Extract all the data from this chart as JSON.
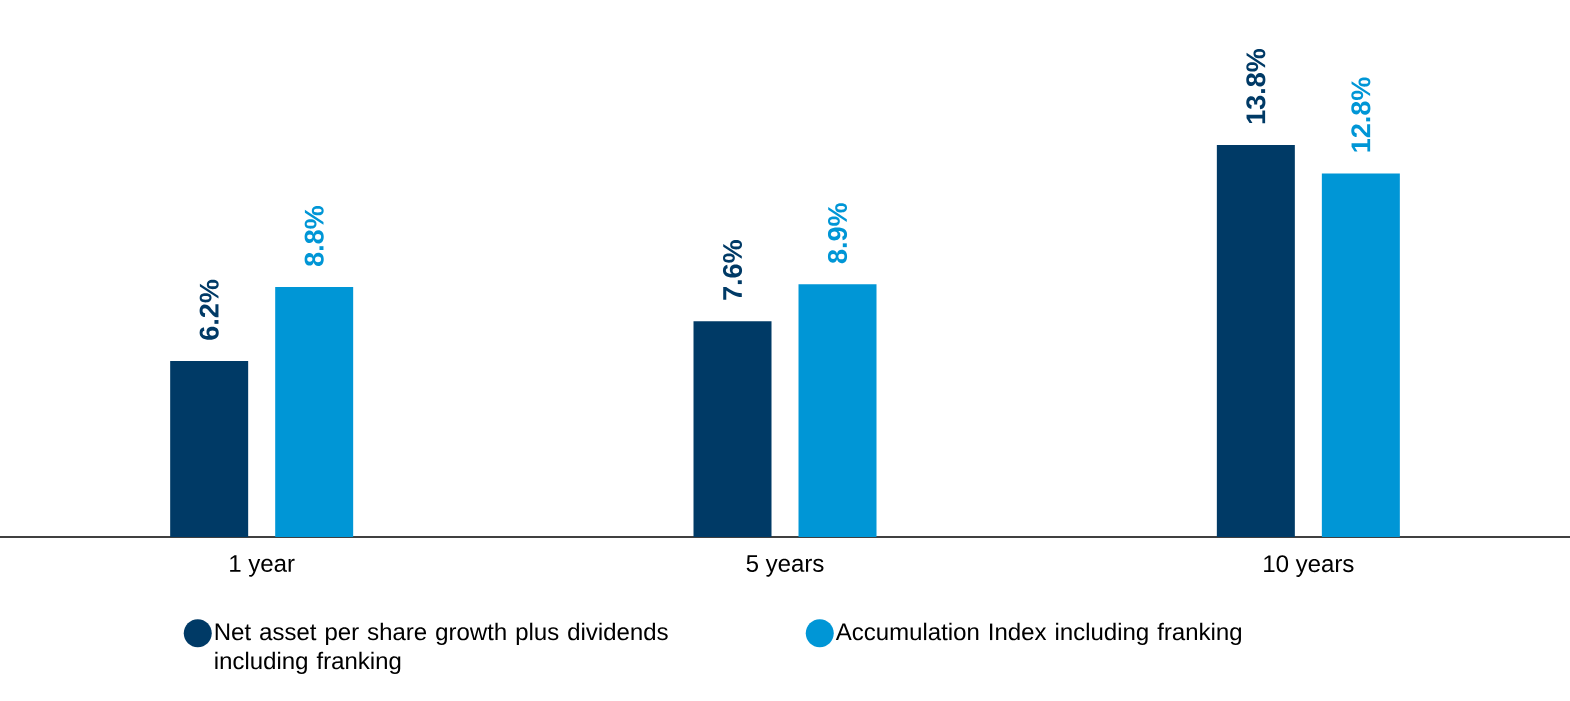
{
  "chart_data": {
    "type": "bar",
    "categories": [
      "1 year",
      "5 years",
      "10 years"
    ],
    "series": [
      {
        "name": "Net asset per share growth plus dividends including franking",
        "color": "#003a66",
        "values": [
          6.2,
          7.6,
          13.8
        ],
        "value_labels": [
          "6.2%",
          "7.6%",
          "13.8%"
        ]
      },
      {
        "name": "Accumulation Index including franking",
        "color": "#0096d6",
        "values": [
          8.8,
          8.9,
          12.8
        ],
        "value_labels": [
          "8.8%",
          "8.9%",
          "12.8%"
        ]
      }
    ],
    "legend": "bottom"
  }
}
